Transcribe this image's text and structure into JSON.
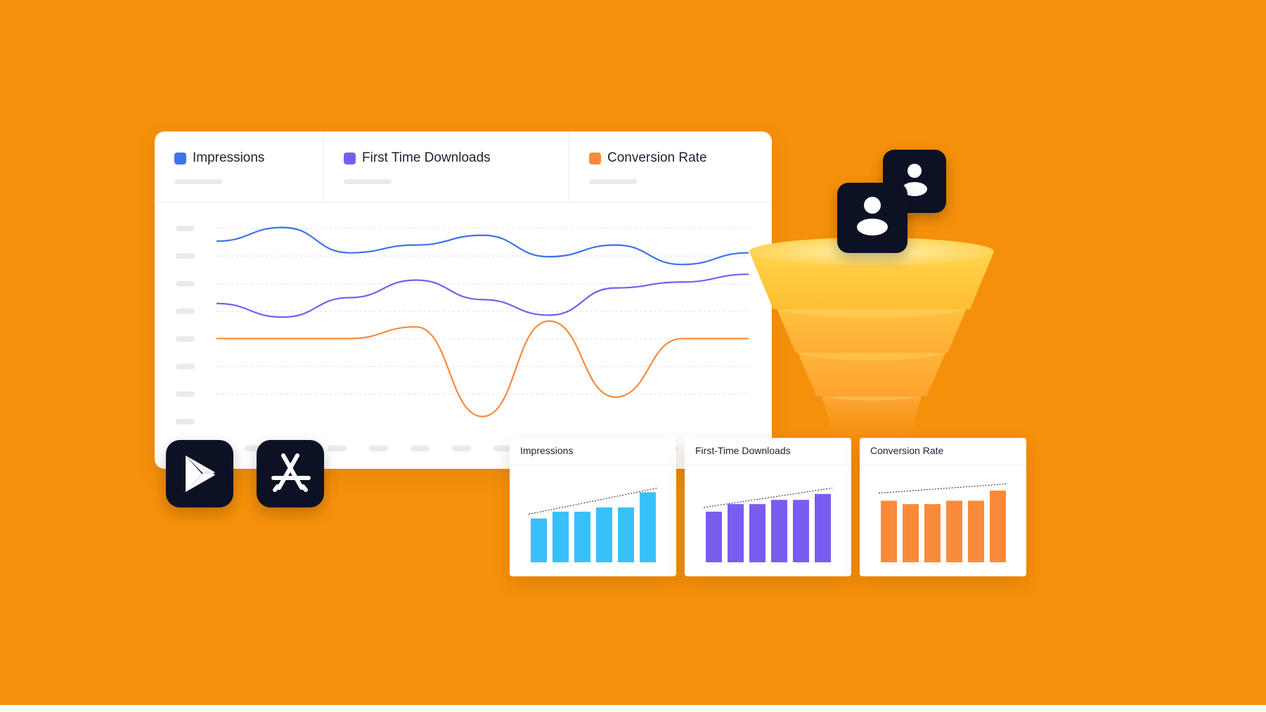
{
  "metrics": [
    {
      "label": "Impressions",
      "color": "#3F72E8"
    },
    {
      "label": "First Time Downloads",
      "color": "#7B5CF0"
    },
    {
      "label": "Conversion Rate",
      "color": "#F98A3A"
    }
  ],
  "icons": {
    "play_store": "play-store-icon",
    "app_store": "app-store-icon",
    "user": "user-icon"
  },
  "funnel_colors": [
    "#FFC93C",
    "#FFB83A",
    "#FFAD36",
    "#FF9F2E"
  ],
  "line_chart": {
    "type": "line",
    "grid": true,
    "series": [
      {
        "key": "impressions",
        "color": "#3F72E8",
        "values": [
          72,
          79,
          66,
          70,
          75,
          64,
          70,
          60,
          66
        ]
      },
      {
        "key": "first_time_downloads",
        "color": "#7B5CF0",
        "values": [
          40,
          33,
          43,
          52,
          42,
          34,
          48,
          51,
          55
        ]
      },
      {
        "key": "conversion_rate",
        "color": "#F98A3A",
        "values": [
          22,
          22,
          22,
          28,
          -18,
          31,
          -8,
          22,
          22
        ]
      }
    ]
  },
  "chart_data": [
    {
      "type": "bar",
      "title": "Impressions",
      "color": "#38C0FA",
      "values": [
        52,
        60,
        60,
        65,
        65,
        83
      ],
      "trend": [
        52,
        83
      ]
    },
    {
      "type": "bar",
      "title": "First-Time Downloads",
      "color": "#7B5CF0",
      "values": [
        60,
        69,
        69,
        74,
        74,
        81
      ],
      "trend": [
        60,
        83
      ]
    },
    {
      "type": "bar",
      "title": "Conversion Rate",
      "color": "#F98A3A",
      "values": [
        73,
        69,
        69,
        73,
        73,
        85
      ],
      "trend": [
        77,
        88
      ]
    }
  ]
}
